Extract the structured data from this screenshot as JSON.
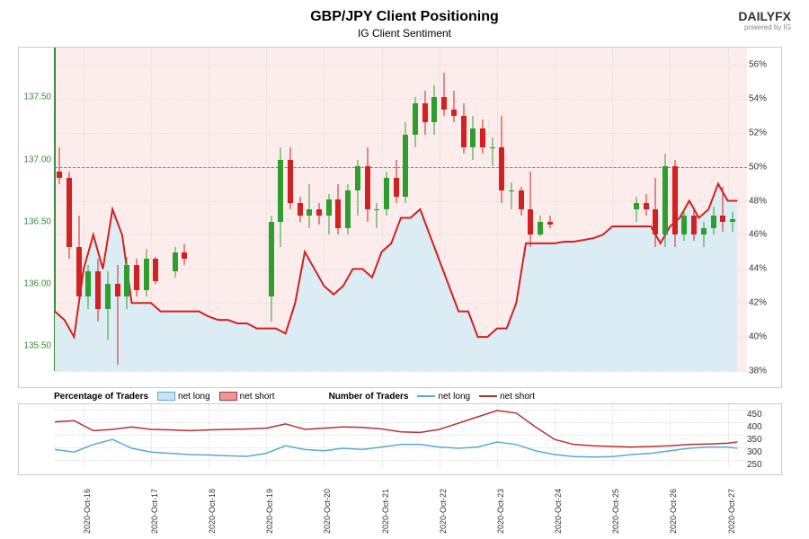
{
  "title": "GBP/JPY Client Positioning",
  "subtitle": "IG Client Sentiment",
  "logo": {
    "main": "DAILYFX",
    "sub": "powered by IG"
  },
  "main_chart": {
    "left_axis": {
      "min": 135.3,
      "max": 137.9,
      "ticks": [
        135.5,
        136.0,
        136.5,
        137.0,
        137.5
      ],
      "color": "#3a8a3a"
    },
    "right_axis": {
      "min": 38,
      "max": 57,
      "ticks": [
        38,
        40,
        42,
        44,
        46,
        48,
        50,
        52,
        54,
        56
      ],
      "label_suffix": "%"
    },
    "bg_upper_color": "#fdecec",
    "bg_lower_color": "#e8f2f8",
    "dash_line_at": 50,
    "candles": [
      {
        "o": 136.9,
        "h": 137.1,
        "l": 136.8,
        "c": 136.85,
        "x": 0.5
      },
      {
        "o": 136.85,
        "h": 136.9,
        "l": 136.2,
        "c": 136.3,
        "x": 1.5
      },
      {
        "o": 136.3,
        "h": 136.55,
        "l": 135.85,
        "c": 135.9,
        "x": 2.5
      },
      {
        "o": 135.9,
        "h": 136.15,
        "l": 135.8,
        "c": 136.1,
        "x": 3.5
      },
      {
        "o": 136.1,
        "h": 136.2,
        "l": 135.7,
        "c": 135.8,
        "x": 4.5
      },
      {
        "o": 135.8,
        "h": 136.1,
        "l": 135.55,
        "c": 136.0,
        "x": 5.5
      },
      {
        "o": 136.0,
        "h": 136.15,
        "l": 135.35,
        "c": 135.9,
        "x": 6.5
      },
      {
        "o": 135.9,
        "h": 136.22,
        "l": 135.8,
        "c": 136.15,
        "x": 7.5
      },
      {
        "o": 136.15,
        "h": 136.2,
        "l": 135.9,
        "c": 135.95,
        "x": 8.5
      },
      {
        "o": 135.95,
        "h": 136.28,
        "l": 135.9,
        "c": 136.2,
        "x": 9.5
      },
      {
        "o": 136.2,
        "h": 136.22,
        "l": 136.0,
        "c": 136.02,
        "x": 10.5
      },
      {
        "o": 136.1,
        "h": 136.3,
        "l": 136.05,
        "c": 136.25,
        "x": 12.5
      },
      {
        "o": 136.25,
        "h": 136.32,
        "l": 136.15,
        "c": 136.2,
        "x": 13.5
      },
      {
        "o": 135.9,
        "h": 136.55,
        "l": 135.7,
        "c": 136.5,
        "x": 22.5
      },
      {
        "o": 136.5,
        "h": 137.1,
        "l": 136.3,
        "c": 137.0,
        "x": 23.5
      },
      {
        "o": 137.0,
        "h": 137.1,
        "l": 136.6,
        "c": 136.65,
        "x": 24.5
      },
      {
        "o": 136.65,
        "h": 136.7,
        "l": 136.5,
        "c": 136.55,
        "x": 25.5
      },
      {
        "o": 136.55,
        "h": 136.8,
        "l": 136.45,
        "c": 136.6,
        "x": 26.5
      },
      {
        "o": 136.6,
        "h": 136.65,
        "l": 136.48,
        "c": 136.55,
        "x": 27.5
      },
      {
        "o": 136.55,
        "h": 136.72,
        "l": 136.4,
        "c": 136.68,
        "x": 28.5
      },
      {
        "o": 136.68,
        "h": 136.8,
        "l": 136.4,
        "c": 136.45,
        "x": 29.5
      },
      {
        "o": 136.45,
        "h": 136.8,
        "l": 136.4,
        "c": 136.75,
        "x": 30.5
      },
      {
        "o": 136.75,
        "h": 137.0,
        "l": 136.55,
        "c": 136.95,
        "x": 31.5
      },
      {
        "o": 136.95,
        "h": 137.1,
        "l": 136.5,
        "c": 136.6,
        "x": 32.5
      },
      {
        "o": 136.6,
        "h": 136.65,
        "l": 136.45,
        "c": 136.6,
        "x": 33.5
      },
      {
        "o": 136.6,
        "h": 136.9,
        "l": 136.55,
        "c": 136.85,
        "x": 34.5
      },
      {
        "o": 136.85,
        "h": 137.0,
        "l": 136.65,
        "c": 136.7,
        "x": 35.5
      },
      {
        "o": 136.7,
        "h": 137.3,
        "l": 136.65,
        "c": 137.2,
        "x": 36.5
      },
      {
        "o": 137.2,
        "h": 137.5,
        "l": 137.1,
        "c": 137.45,
        "x": 37.5
      },
      {
        "o": 137.45,
        "h": 137.55,
        "l": 137.2,
        "c": 137.3,
        "x": 38.5
      },
      {
        "o": 137.3,
        "h": 137.6,
        "l": 137.2,
        "c": 137.5,
        "x": 39.5
      },
      {
        "o": 137.5,
        "h": 137.7,
        "l": 137.35,
        "c": 137.4,
        "x": 40.5
      },
      {
        "o": 137.4,
        "h": 137.55,
        "l": 137.3,
        "c": 137.35,
        "x": 41.5
      },
      {
        "o": 137.35,
        "h": 137.45,
        "l": 137.05,
        "c": 137.1,
        "x": 42.5
      },
      {
        "o": 137.1,
        "h": 137.35,
        "l": 137.0,
        "c": 137.25,
        "x": 43.5
      },
      {
        "o": 137.25,
        "h": 137.32,
        "l": 137.05,
        "c": 137.1,
        "x": 44.5
      },
      {
        "o": 137.1,
        "h": 137.18,
        "l": 136.95,
        "c": 137.1,
        "x": 45.5
      },
      {
        "o": 137.1,
        "h": 137.35,
        "l": 136.65,
        "c": 136.75,
        "x": 46.5
      },
      {
        "o": 136.75,
        "h": 136.82,
        "l": 136.6,
        "c": 136.75,
        "x": 47.5
      },
      {
        "o": 136.75,
        "h": 136.78,
        "l": 136.55,
        "c": 136.6,
        "x": 48.5
      },
      {
        "o": 136.6,
        "h": 136.9,
        "l": 136.3,
        "c": 136.4,
        "x": 49.5
      },
      {
        "o": 136.4,
        "h": 136.55,
        "l": 136.38,
        "c": 136.5,
        "x": 50.5
      },
      {
        "o": 136.5,
        "h": 136.55,
        "l": 136.45,
        "c": 136.48,
        "x": 51.5
      },
      {
        "o": 136.6,
        "h": 136.7,
        "l": 136.5,
        "c": 136.65,
        "x": 60.5
      },
      {
        "o": 136.65,
        "h": 136.72,
        "l": 136.55,
        "c": 136.6,
        "x": 61.5
      },
      {
        "o": 136.6,
        "h": 136.85,
        "l": 136.3,
        "c": 136.4,
        "x": 62.5
      },
      {
        "o": 136.4,
        "h": 137.05,
        "l": 136.3,
        "c": 136.95,
        "x": 63.5
      },
      {
        "o": 136.95,
        "h": 137.0,
        "l": 136.3,
        "c": 136.4,
        "x": 64.5
      },
      {
        "o": 136.4,
        "h": 136.6,
        "l": 136.35,
        "c": 136.55,
        "x": 65.5
      },
      {
        "o": 136.55,
        "h": 136.6,
        "l": 136.35,
        "c": 136.4,
        "x": 66.5
      },
      {
        "o": 136.4,
        "h": 136.5,
        "l": 136.3,
        "c": 136.45,
        "x": 67.5
      },
      {
        "o": 136.45,
        "h": 136.62,
        "l": 136.4,
        "c": 136.55,
        "x": 68.5
      },
      {
        "o": 136.55,
        "h": 136.78,
        "l": 136.42,
        "c": 136.5,
        "x": 69.5
      },
      {
        "o": 136.5,
        "h": 136.58,
        "l": 136.42,
        "c": 136.52,
        "x": 70.5
      }
    ],
    "x_count": 72,
    "sentiment_line_color": "#d32020",
    "sentiment_fill_color": "#dcecf4",
    "sentiment": [
      {
        "x": 0,
        "v": 41.5
      },
      {
        "x": 1,
        "v": 41
      },
      {
        "x": 2,
        "v": 40
      },
      {
        "x": 3,
        "v": 44
      },
      {
        "x": 4,
        "v": 46
      },
      {
        "x": 5,
        "v": 44
      },
      {
        "x": 6,
        "v": 47.5
      },
      {
        "x": 7,
        "v": 46
      },
      {
        "x": 8,
        "v": 42
      },
      {
        "x": 9,
        "v": 42
      },
      {
        "x": 10,
        "v": 42
      },
      {
        "x": 11,
        "v": 41.5
      },
      {
        "x": 12,
        "v": 41.5
      },
      {
        "x": 13,
        "v": 41.5
      },
      {
        "x": 14,
        "v": 41.5
      },
      {
        "x": 15,
        "v": 41.5
      },
      {
        "x": 16,
        "v": 41.2
      },
      {
        "x": 17,
        "v": 41
      },
      {
        "x": 18,
        "v": 41
      },
      {
        "x": 19,
        "v": 40.8
      },
      {
        "x": 20,
        "v": 40.8
      },
      {
        "x": 21,
        "v": 40.5
      },
      {
        "x": 22,
        "v": 40.5
      },
      {
        "x": 23,
        "v": 40.5
      },
      {
        "x": 24,
        "v": 40.2
      },
      {
        "x": 25,
        "v": 42
      },
      {
        "x": 26,
        "v": 45
      },
      {
        "x": 27,
        "v": 44
      },
      {
        "x": 28,
        "v": 43
      },
      {
        "x": 29,
        "v": 42.5
      },
      {
        "x": 30,
        "v": 43
      },
      {
        "x": 31,
        "v": 44
      },
      {
        "x": 32,
        "v": 44
      },
      {
        "x": 33,
        "v": 43.5
      },
      {
        "x": 34,
        "v": 45
      },
      {
        "x": 35,
        "v": 45.5
      },
      {
        "x": 36,
        "v": 47
      },
      {
        "x": 37,
        "v": 47
      },
      {
        "x": 38,
        "v": 47.5
      },
      {
        "x": 39,
        "v": 46
      },
      {
        "x": 40,
        "v": 44.5
      },
      {
        "x": 41,
        "v": 43
      },
      {
        "x": 42,
        "v": 41.5
      },
      {
        "x": 43,
        "v": 41.5
      },
      {
        "x": 44,
        "v": 40
      },
      {
        "x": 45,
        "v": 40
      },
      {
        "x": 46,
        "v": 40.5
      },
      {
        "x": 47,
        "v": 40.5
      },
      {
        "x": 48,
        "v": 42
      },
      {
        "x": 49,
        "v": 45.5
      },
      {
        "x": 50,
        "v": 45.5
      },
      {
        "x": 51,
        "v": 45.5
      },
      {
        "x": 52,
        "v": 45.5
      },
      {
        "x": 53,
        "v": 45.6
      },
      {
        "x": 54,
        "v": 45.6
      },
      {
        "x": 55,
        "v": 45.7
      },
      {
        "x": 56,
        "v": 45.8
      },
      {
        "x": 57,
        "v": 46
      },
      {
        "x": 58,
        "v": 46.5
      },
      {
        "x": 59,
        "v": 46.5
      },
      {
        "x": 60,
        "v": 46.5
      },
      {
        "x": 61,
        "v": 46.5
      },
      {
        "x": 62,
        "v": 46.5
      },
      {
        "x": 63,
        "v": 45.5
      },
      {
        "x": 64,
        "v": 46.5
      },
      {
        "x": 65,
        "v": 47
      },
      {
        "x": 66,
        "v": 48
      },
      {
        "x": 67,
        "v": 47
      },
      {
        "x": 68,
        "v": 47.5
      },
      {
        "x": 69,
        "v": 49
      },
      {
        "x": 70,
        "v": 48
      },
      {
        "x": 71,
        "v": 48
      }
    ]
  },
  "legend": {
    "pct_label": "Percentage of Traders",
    "num_label": "Number of Traders",
    "net_long": "net long",
    "net_short": "net short",
    "fill_long_color": "#c7e4f2",
    "fill_short_color": "#e89a9a",
    "line_long_color": "#5aa8d6",
    "line_short_color": "#b83030"
  },
  "sub_chart": {
    "right_axis": {
      "min": 220,
      "max": 470,
      "ticks": [
        250,
        300,
        350,
        400,
        450
      ]
    },
    "long_color": "#5aa8d6",
    "short_color": "#b83030",
    "long": [
      {
        "x": 0,
        "v": 290
      },
      {
        "x": 2,
        "v": 280
      },
      {
        "x": 4,
        "v": 310
      },
      {
        "x": 6,
        "v": 330
      },
      {
        "x": 8,
        "v": 295
      },
      {
        "x": 10,
        "v": 280
      },
      {
        "x": 12,
        "v": 275
      },
      {
        "x": 14,
        "v": 270
      },
      {
        "x": 16,
        "v": 268
      },
      {
        "x": 18,
        "v": 265
      },
      {
        "x": 20,
        "v": 263
      },
      {
        "x": 22,
        "v": 275
      },
      {
        "x": 24,
        "v": 305
      },
      {
        "x": 26,
        "v": 290
      },
      {
        "x": 28,
        "v": 285
      },
      {
        "x": 30,
        "v": 295
      },
      {
        "x": 32,
        "v": 290
      },
      {
        "x": 34,
        "v": 300
      },
      {
        "x": 36,
        "v": 310
      },
      {
        "x": 38,
        "v": 310
      },
      {
        "x": 40,
        "v": 300
      },
      {
        "x": 42,
        "v": 295
      },
      {
        "x": 44,
        "v": 300
      },
      {
        "x": 46,
        "v": 320
      },
      {
        "x": 48,
        "v": 310
      },
      {
        "x": 50,
        "v": 285
      },
      {
        "x": 52,
        "v": 270
      },
      {
        "x": 54,
        "v": 262
      },
      {
        "x": 56,
        "v": 260
      },
      {
        "x": 58,
        "v": 262
      },
      {
        "x": 60,
        "v": 270
      },
      {
        "x": 62,
        "v": 275
      },
      {
        "x": 64,
        "v": 285
      },
      {
        "x": 66,
        "v": 295
      },
      {
        "x": 68,
        "v": 300
      },
      {
        "x": 70,
        "v": 300
      },
      {
        "x": 71,
        "v": 295
      }
    ],
    "short": [
      {
        "x": 0,
        "v": 400
      },
      {
        "x": 2,
        "v": 405
      },
      {
        "x": 4,
        "v": 365
      },
      {
        "x": 6,
        "v": 370
      },
      {
        "x": 8,
        "v": 380
      },
      {
        "x": 10,
        "v": 370
      },
      {
        "x": 12,
        "v": 368
      },
      {
        "x": 14,
        "v": 365
      },
      {
        "x": 16,
        "v": 368
      },
      {
        "x": 18,
        "v": 370
      },
      {
        "x": 20,
        "v": 372
      },
      {
        "x": 22,
        "v": 375
      },
      {
        "x": 24,
        "v": 392
      },
      {
        "x": 26,
        "v": 370
      },
      {
        "x": 28,
        "v": 375
      },
      {
        "x": 30,
        "v": 380
      },
      {
        "x": 32,
        "v": 378
      },
      {
        "x": 34,
        "v": 372
      },
      {
        "x": 36,
        "v": 360
      },
      {
        "x": 38,
        "v": 358
      },
      {
        "x": 40,
        "v": 370
      },
      {
        "x": 42,
        "v": 395
      },
      {
        "x": 44,
        "v": 420
      },
      {
        "x": 46,
        "v": 445
      },
      {
        "x": 48,
        "v": 435
      },
      {
        "x": 50,
        "v": 380
      },
      {
        "x": 52,
        "v": 330
      },
      {
        "x": 54,
        "v": 310
      },
      {
        "x": 56,
        "v": 305
      },
      {
        "x": 58,
        "v": 302
      },
      {
        "x": 60,
        "v": 300
      },
      {
        "x": 62,
        "v": 302
      },
      {
        "x": 64,
        "v": 305
      },
      {
        "x": 66,
        "v": 310
      },
      {
        "x": 68,
        "v": 312
      },
      {
        "x": 70,
        "v": 315
      },
      {
        "x": 71,
        "v": 320
      }
    ]
  },
  "x_axis": {
    "ticks": [
      {
        "pos": 3,
        "label": "2020-Oct-16"
      },
      {
        "pos": 10,
        "label": "2020-Oct-17"
      },
      {
        "pos": 16,
        "label": "2020-Oct-18"
      },
      {
        "pos": 22,
        "label": "2020-Oct-19"
      },
      {
        "pos": 28,
        "label": "2020-Oct-20"
      },
      {
        "pos": 34,
        "label": "2020-Oct-21"
      },
      {
        "pos": 40,
        "label": "2020-Oct-22"
      },
      {
        "pos": 46,
        "label": "2020-Oct-23"
      },
      {
        "pos": 52,
        "label": "2020-Oct-24"
      },
      {
        "pos": 58,
        "label": "2020-Oct-25"
      },
      {
        "pos": 64,
        "label": "2020-Oct-26"
      },
      {
        "pos": 70,
        "label": "2020-Oct-27"
      }
    ]
  },
  "candle_colors": {
    "up_fill": "#2e9e2e",
    "down_fill": "#d32020"
  }
}
